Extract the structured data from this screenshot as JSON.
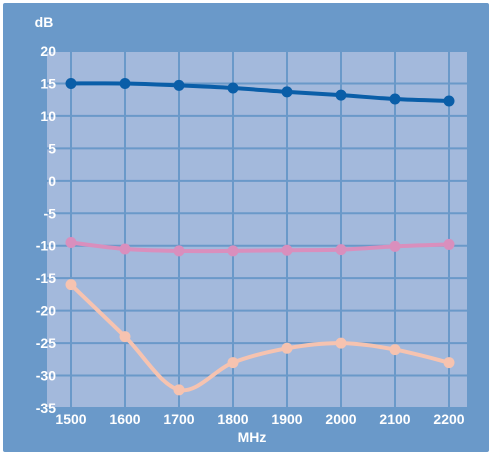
{
  "chart_data": {
    "type": "line",
    "ylabel": "dB",
    "xlabel": "MHz",
    "x": [
      1500,
      1600,
      1700,
      1800,
      1900,
      2000,
      2100,
      2200
    ],
    "x_ticks": [
      "1500",
      "1600",
      "1700",
      "1800",
      "1900",
      "2000",
      "2100",
      "2200"
    ],
    "y_ticks": [
      "20",
      "15",
      "10",
      "5",
      "0",
      "-5",
      "-10",
      "-15",
      "-20",
      "-25",
      "-30",
      "-35"
    ],
    "ylim": [
      -35,
      20
    ],
    "xlim": [
      1500,
      2200
    ],
    "grid": true,
    "series": [
      {
        "color": "#0a5ea8",
        "values": [
          15,
          15,
          14.7,
          14.3,
          13.7,
          13.2,
          12.6,
          12.3
        ]
      },
      {
        "color": "#d98fbd",
        "values": [
          -9.5,
          -10.5,
          -10.8,
          -10.8,
          -10.7,
          -10.6,
          -10.1,
          -9.8
        ]
      },
      {
        "color": "#f6c3b0",
        "values": [
          -16,
          -24,
          -32.2,
          -28,
          -25.8,
          -25,
          -26,
          -28
        ]
      }
    ],
    "colors": {
      "background": "#6a99c9",
      "plot_area": "#a3b9dc",
      "grid": "#6a99c9",
      "text": "#ffffff"
    }
  }
}
